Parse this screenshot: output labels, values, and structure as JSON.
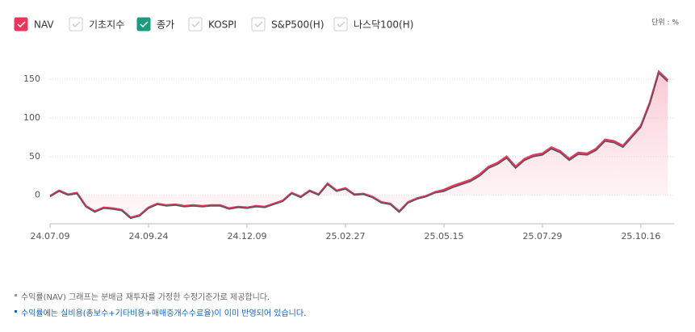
{
  "chart_data": {
    "type": "line",
    "unit": "단위 : %",
    "series": [
      {
        "name": "NAV",
        "color": "#e8365d",
        "checked": true,
        "values": [
          -1,
          6,
          1,
          3,
          -14,
          -21,
          -16,
          -17,
          -19,
          -29,
          -26,
          -16,
          -11,
          -13,
          -12,
          -14,
          -13,
          -14,
          -13,
          -13,
          -17,
          -15,
          -16,
          -14,
          -15,
          -11,
          -7,
          3,
          -2,
          6,
          1,
          15,
          6,
          9,
          1,
          2,
          -2,
          -9,
          -11,
          -21,
          -9,
          -4,
          -1,
          4,
          7,
          12,
          16,
          20,
          27,
          37,
          42,
          50,
          37,
          47,
          52,
          54,
          62,
          57,
          47,
          55,
          54,
          60,
          72,
          70,
          64,
          77,
          90,
          120,
          160,
          149
        ]
      },
      {
        "name": "종가",
        "color": "#1a9c7e",
        "line_color": "#555555",
        "checked": true,
        "values": [
          -2,
          5,
          0,
          2,
          -15,
          -22,
          -17,
          -18,
          -20,
          -30,
          -27,
          -17,
          -12,
          -14,
          -13,
          -15,
          -14,
          -15,
          -14,
          -14,
          -18,
          -16,
          -17,
          -15,
          -16,
          -12,
          -8,
          2,
          -3,
          5,
          0,
          14,
          5,
          8,
          0,
          1,
          -3,
          -10,
          -12,
          -22,
          -10,
          -5,
          -2,
          3,
          5,
          10,
          14,
          18,
          25,
          35,
          40,
          48,
          35,
          45,
          50,
          52,
          60,
          55,
          45,
          53,
          52,
          58,
          70,
          68,
          62,
          75,
          88,
          118,
          158,
          147
        ]
      }
    ],
    "unselected_series": [
      {
        "name": "기초지수",
        "checked": false
      },
      {
        "name": "KOSPI",
        "checked": false
      },
      {
        "name": "S&P500(H)",
        "checked": false
      },
      {
        "name": "나스닥100(H)",
        "checked": false
      }
    ],
    "categories": [
      "24.07.09",
      null,
      null,
      null,
      null,
      null,
      null,
      null,
      null,
      null,
      null,
      "24.09.24",
      null,
      null,
      null,
      null,
      null,
      null,
      null,
      null,
      null,
      null,
      "24.12.09",
      null,
      null,
      null,
      null,
      null,
      null,
      null,
      null,
      null,
      null,
      "25.02.27",
      null,
      null,
      null,
      null,
      null,
      null,
      null,
      null,
      null,
      null,
      "25.05.15",
      null,
      null,
      null,
      null,
      null,
      null,
      null,
      null,
      null,
      null,
      "25.07.29",
      null,
      null,
      null,
      null,
      null,
      null,
      null,
      null,
      null,
      null,
      "25.10.16",
      null,
      null,
      null
    ],
    "ylim": [
      -37,
      190
    ],
    "yticks": [
      0,
      50,
      100,
      150
    ],
    "grid": true
  },
  "notes": [
    "수익률(NAV) 그래프는 분배금 재투자를 가정한 수정기준가로 제공합니다.",
    "수익률에는 실비용(총보수+기타비용+매매중개수수료율)이 이미 반영되어 있습니다."
  ]
}
